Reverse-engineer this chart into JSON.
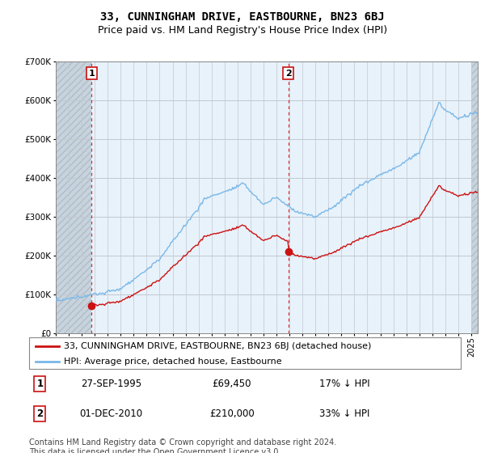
{
  "title": "33, CUNNINGHAM DRIVE, EASTBOURNE, BN23 6BJ",
  "subtitle": "Price paid vs. HM Land Registry's House Price Index (HPI)",
  "ylim": [
    0,
    700000
  ],
  "yticks": [
    0,
    100000,
    200000,
    300000,
    400000,
    500000,
    600000,
    700000
  ],
  "ytick_labels": [
    "£0",
    "£100K",
    "£200K",
    "£300K",
    "£400K",
    "£500K",
    "£600K",
    "£700K"
  ],
  "hpi_color": "#7AB8E8",
  "price_color": "#CC1111",
  "bg_light": "#E8F2FB",
  "bg_hatch": "#D0D8E0",
  "grid_color": "#CCCCCC",
  "transaction1_year": 1995.75,
  "transaction1_price": 69450,
  "transaction2_year": 2010.92,
  "transaction2_price": 210000,
  "legend_property_label": "33, CUNNINGHAM DRIVE, EASTBOURNE, BN23 6BJ (detached house)",
  "legend_hpi_label": "HPI: Average price, detached house, Eastbourne",
  "table_rows": [
    {
      "num": "1",
      "date": "27-SEP-1995",
      "price": "£69,450",
      "pct": "17% ↓ HPI"
    },
    {
      "num": "2",
      "date": "01-DEC-2010",
      "price": "£210,000",
      "pct": "33% ↓ HPI"
    }
  ],
  "footnote": "Contains HM Land Registry data © Crown copyright and database right 2024.\nThis data is licensed under the Open Government Licence v3.0.",
  "title_fontsize": 10,
  "subtitle_fontsize": 9,
  "tick_fontsize": 7,
  "legend_fontsize": 8,
  "table_fontsize": 8.5,
  "footnote_fontsize": 7,
  "xmin": 1993.0,
  "xmax": 2025.5
}
